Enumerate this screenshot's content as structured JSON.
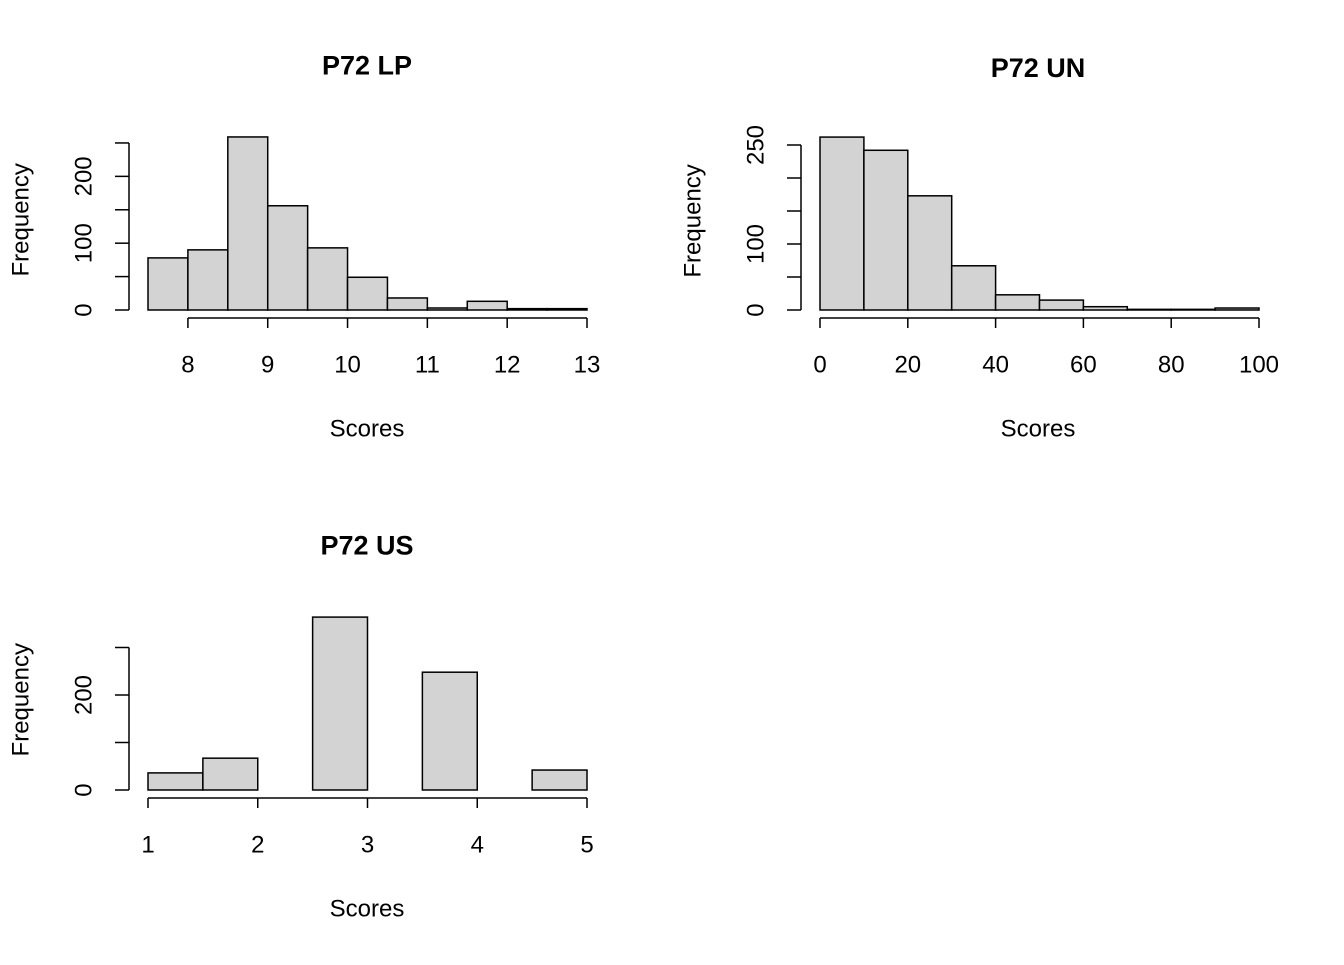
{
  "chart_data": [
    {
      "type": "histogram",
      "title": "P72 LP",
      "x_label": "Scores",
      "y_label": "Frequency",
      "color": "#d3d3d3",
      "bins": [
        7.5,
        8,
        8.5,
        9,
        9.5,
        10,
        10.5,
        11,
        11.5,
        12,
        12.5,
        13
      ],
      "values": [
        78,
        90,
        259,
        156,
        93,
        49,
        18,
        3,
        13,
        2,
        2
      ],
      "xlim": [
        7.5,
        13
      ],
      "xticks": [
        8,
        9,
        10,
        11,
        12,
        13
      ],
      "ylim": [
        0,
        270
      ],
      "yticks": [
        0,
        {
          "value": 50,
          "label": null
        },
        100,
        {
          "value": 150,
          "label": null
        },
        200,
        {
          "value": 250,
          "label": null
        }
      ]
    },
    {
      "type": "histogram",
      "title": "P72 UN",
      "x_label": "Scores",
      "y_label": "Frequency",
      "color": "#d3d3d3",
      "bins": [
        0,
        10,
        20,
        30,
        40,
        50,
        60,
        70,
        80,
        90,
        100
      ],
      "values": [
        262,
        242,
        173,
        67,
        23,
        15,
        5,
        1,
        1,
        3
      ],
      "xlim": [
        0,
        100
      ],
      "xticks": [
        0,
        20,
        40,
        60,
        80,
        100
      ],
      "ylim": [
        0,
        270
      ],
      "yticks": [
        0,
        {
          "value": 50,
          "label": null
        },
        100,
        {
          "value": 150,
          "label": null
        },
        {
          "value": 200,
          "label": null
        },
        250
      ]
    },
    {
      "type": "histogram",
      "title": "P72 US",
      "x_label": "Scores",
      "y_label": "Frequency",
      "color": "#d3d3d3",
      "bins": [
        1,
        1.5,
        2,
        2.5,
        3,
        3.5,
        4,
        4.5,
        5
      ],
      "values": [
        36,
        67,
        0,
        364,
        0,
        248,
        0,
        42
      ],
      "xlim": [
        1,
        5
      ],
      "xticks": [
        1,
        2,
        3,
        4,
        5
      ],
      "ylim": [
        0,
        380
      ],
      "yticks": [
        0,
        {
          "value": 100,
          "label": null
        },
        200,
        {
          "value": 300,
          "label": null
        }
      ]
    }
  ]
}
